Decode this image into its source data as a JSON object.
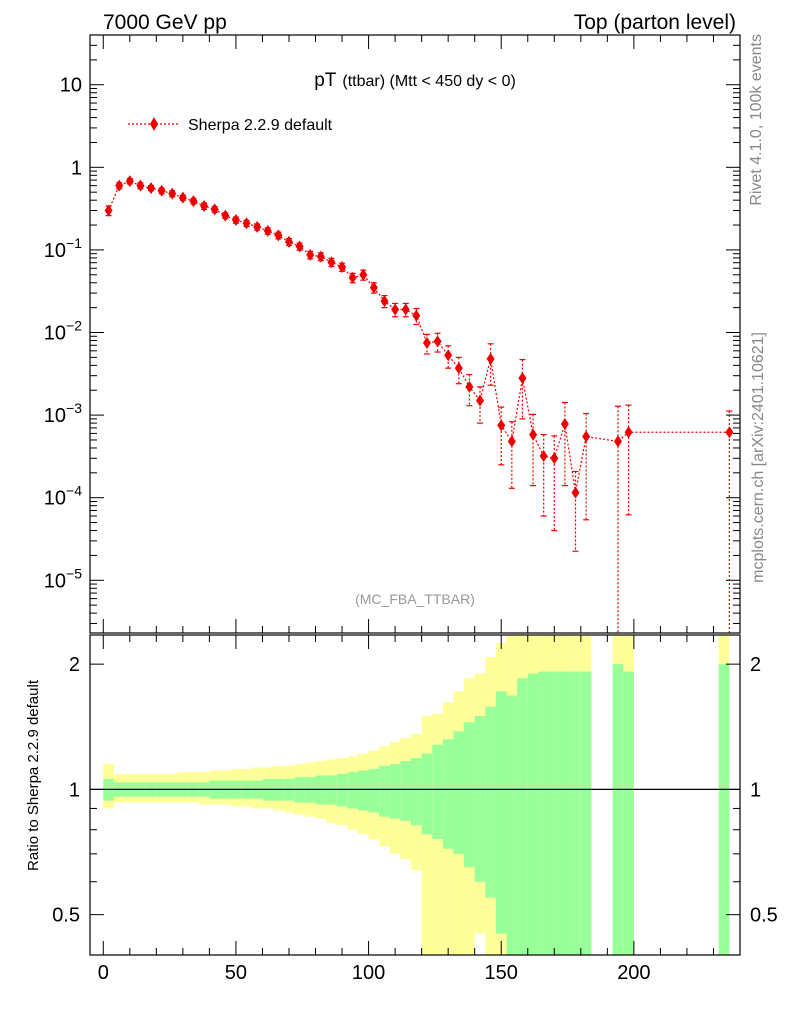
{
  "header": {
    "left": "7000 GeV pp",
    "right": "Top (parton level)"
  },
  "side_labels": {
    "rivet": "Rivet 4.1.0,  100k events",
    "mcplots": "mcplots.cern.ch [arXiv:2401.10621]"
  },
  "colors": {
    "series": "#ee0000",
    "band_inner": "#99ff99",
    "band_outer": "#ffff99",
    "axis": "#000000",
    "note": "#999999"
  },
  "chart_data": [
    {
      "type": "scatter",
      "yscale": "log",
      "title": "pT",
      "title_suffix": "(ttbar) (Mtt < 450 dy < 0)",
      "annotation": "(MC_FBA_TTBAR)",
      "xlabel": "",
      "ylabel": "",
      "xlim": [
        -5,
        240
      ],
      "ylim": [
        2.3e-06,
        40
      ],
      "y_ticks": [
        {
          "value": 10,
          "base": "10",
          "exp": ""
        },
        {
          "value": 1,
          "base": "1",
          "exp": ""
        },
        {
          "value": 0.1,
          "base": "10",
          "exp": "−1"
        },
        {
          "value": 0.01,
          "base": "10",
          "exp": "−2"
        },
        {
          "value": 0.001,
          "base": "10",
          "exp": "−3"
        },
        {
          "value": 0.0001,
          "base": "10",
          "exp": "−4"
        },
        {
          "value": 1e-05,
          "base": "10",
          "exp": "−5"
        }
      ],
      "legend": {
        "label": "Sherpa 2.2.9 default",
        "placement": "top-left"
      },
      "series": [
        {
          "name": "Sherpa 2.2.9 default",
          "x": [
            2,
            6,
            10,
            14,
            18,
            22,
            26,
            30,
            34,
            38,
            42,
            46,
            50,
            54,
            58,
            62,
            66,
            70,
            74,
            78,
            82,
            86,
            90,
            94,
            98,
            102,
            106,
            110,
            114,
            118,
            122,
            126,
            130,
            134,
            138,
            142,
            146,
            150,
            154,
            158,
            162,
            166,
            170,
            174,
            178,
            182,
            194,
            198,
            236
          ],
          "y": [
            0.3,
            0.6,
            0.68,
            0.6,
            0.56,
            0.52,
            0.48,
            0.43,
            0.39,
            0.34,
            0.31,
            0.26,
            0.23,
            0.21,
            0.19,
            0.17,
            0.15,
            0.125,
            0.11,
            0.087,
            0.083,
            0.071,
            0.062,
            0.046,
            0.05,
            0.035,
            0.024,
            0.019,
            0.019,
            0.016,
            0.0075,
            0.0078,
            0.0053,
            0.0037,
            0.0022,
            0.0015,
            0.0048,
            0.00075,
            0.00048,
            0.0028,
            0.00058,
            0.00032,
            0.0003,
            0.00078,
            0.000115,
            0.00055,
            0.00048,
            0.00062,
            0.00062
          ],
          "err_lo": [
            0.04,
            0.05,
            0.05,
            0.05,
            0.04,
            0.04,
            0.04,
            0.03,
            0.03,
            0.03,
            0.025,
            0.02,
            0.02,
            0.018,
            0.016,
            0.015,
            0.014,
            0.012,
            0.011,
            0.009,
            0.009,
            0.008,
            0.007,
            0.006,
            0.007,
            0.005,
            0.004,
            0.0035,
            0.0035,
            0.0035,
            0.002,
            0.002,
            0.0016,
            0.0013,
            0.0009,
            0.0007,
            0.0025,
            0.0005,
            0.00035,
            0.0019,
            0.00044,
            0.00026,
            0.00026,
            0.00064,
            9.25e-05,
            0.000496,
            0.0004788,
            0.000558,
            0.0006188
          ],
          "err_hi": [
            0.04,
            0.05,
            0.05,
            0.05,
            0.04,
            0.04,
            0.04,
            0.03,
            0.03,
            0.03,
            0.025,
            0.02,
            0.02,
            0.018,
            0.016,
            0.015,
            0.014,
            0.012,
            0.011,
            0.009,
            0.009,
            0.008,
            0.007,
            0.006,
            0.007,
            0.005,
            0.004,
            0.0035,
            0.0035,
            0.0035,
            0.002,
            0.002,
            0.0016,
            0.0013,
            0.0009,
            0.0007,
            0.0025,
            0.0005,
            0.00035,
            0.0019,
            0.00044,
            0.00026,
            0.00026,
            0.00064,
            9.25e-05,
            0.000496,
            0.0008,
            0.0007,
            0.0005
          ]
        }
      ]
    },
    {
      "type": "area",
      "title": "",
      "xlabel": "",
      "ylabel": "Ratio to Sherpa 2.2.9 default",
      "yscale": "log",
      "xlim": [
        -5,
        240
      ],
      "ylim": [
        0.4,
        2.35
      ],
      "x_ticks": [
        0,
        50,
        100,
        150,
        200
      ],
      "y_ticks": [
        0.5,
        1,
        2
      ],
      "reference_line": 1,
      "bands": {
        "x_left": [
          0,
          4,
          8,
          12,
          16,
          20,
          24,
          28,
          32,
          36,
          40,
          44,
          48,
          52,
          56,
          60,
          64,
          68,
          72,
          76,
          80,
          84,
          88,
          92,
          96,
          100,
          104,
          108,
          112,
          116,
          120,
          124,
          128,
          132,
          136,
          140,
          144,
          148,
          152,
          156,
          160,
          164,
          168,
          172,
          176,
          180,
          192,
          196,
          232
        ],
        "x_right": [
          4,
          8,
          12,
          16,
          20,
          24,
          28,
          32,
          36,
          40,
          44,
          48,
          52,
          56,
          60,
          64,
          68,
          72,
          76,
          80,
          84,
          88,
          92,
          96,
          100,
          104,
          108,
          112,
          116,
          120,
          124,
          128,
          132,
          136,
          140,
          144,
          148,
          152,
          156,
          160,
          164,
          168,
          172,
          176,
          180,
          184,
          196,
          200,
          236
        ],
        "inner_lo": [
          0.94,
          0.96,
          0.96,
          0.96,
          0.96,
          0.96,
          0.96,
          0.96,
          0.96,
          0.96,
          0.95,
          0.95,
          0.95,
          0.95,
          0.95,
          0.94,
          0.94,
          0.94,
          0.93,
          0.93,
          0.92,
          0.92,
          0.91,
          0.9,
          0.89,
          0.88,
          0.86,
          0.85,
          0.84,
          0.82,
          0.78,
          0.76,
          0.72,
          0.7,
          0.65,
          0.6,
          0.55,
          0.45,
          0.4,
          0.3,
          0.3,
          0.3,
          0.3,
          0.3,
          0.3,
          0.3,
          0.3,
          0.3,
          0.3
        ],
        "inner_hi": [
          1.06,
          1.04,
          1.04,
          1.04,
          1.04,
          1.04,
          1.04,
          1.04,
          1.04,
          1.04,
          1.05,
          1.05,
          1.05,
          1.05,
          1.05,
          1.06,
          1.06,
          1.06,
          1.07,
          1.07,
          1.08,
          1.08,
          1.09,
          1.1,
          1.11,
          1.12,
          1.14,
          1.15,
          1.17,
          1.19,
          1.22,
          1.28,
          1.32,
          1.38,
          1.45,
          1.5,
          1.58,
          1.72,
          1.68,
          1.85,
          1.9,
          1.92,
          1.92,
          1.92,
          1.92,
          1.92,
          2.0,
          1.92,
          2.0
        ],
        "outer_lo": [
          0.9,
          0.93,
          0.93,
          0.93,
          0.93,
          0.93,
          0.93,
          0.93,
          0.93,
          0.92,
          0.92,
          0.92,
          0.91,
          0.91,
          0.9,
          0.9,
          0.89,
          0.88,
          0.87,
          0.86,
          0.85,
          0.83,
          0.82,
          0.8,
          0.78,
          0.76,
          0.73,
          0.7,
          0.68,
          0.64,
          0.3,
          0.3,
          0.3,
          0.3,
          0.3,
          0.45,
          0.3,
          0.3,
          0.3,
          0.3,
          0.3,
          0.3,
          0.3,
          0.3,
          0.3,
          0.3,
          0.3,
          0.3,
          0.3
        ],
        "outer_hi": [
          1.15,
          1.09,
          1.09,
          1.09,
          1.09,
          1.09,
          1.09,
          1.1,
          1.1,
          1.1,
          1.11,
          1.11,
          1.12,
          1.12,
          1.13,
          1.13,
          1.14,
          1.14,
          1.15,
          1.16,
          1.17,
          1.18,
          1.19,
          1.2,
          1.22,
          1.24,
          1.27,
          1.3,
          1.33,
          1.36,
          1.5,
          1.52,
          1.62,
          1.72,
          1.85,
          1.9,
          2.08,
          2.25,
          2.35,
          2.35,
          2.35,
          2.35,
          2.35,
          2.35,
          2.35,
          2.35,
          2.35,
          2.35,
          2.35
        ]
      }
    }
  ]
}
